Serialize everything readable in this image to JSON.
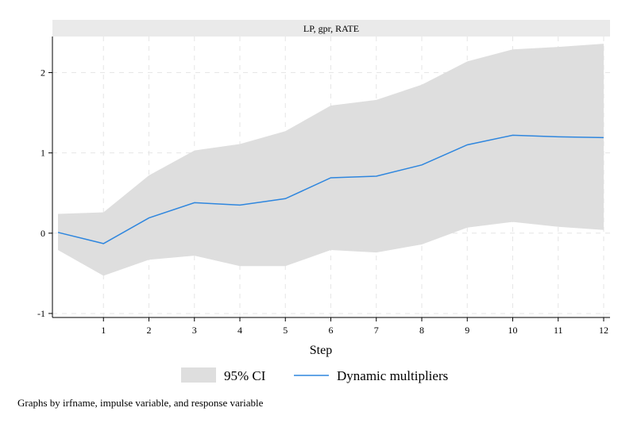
{
  "chart_data": {
    "type": "line",
    "title": "LP, gpr, RATE",
    "xlabel": "Step",
    "ylabel": "",
    "x": [
      0,
      1,
      2,
      3,
      4,
      5,
      6,
      7,
      8,
      9,
      10,
      11,
      12
    ],
    "xticks": [
      1,
      2,
      3,
      4,
      5,
      6,
      7,
      8,
      9,
      10,
      11,
      12
    ],
    "xlim": [
      0,
      12
    ],
    "yticks": [
      -1,
      0,
      1,
      2
    ],
    "ylim": [
      -1.05,
      2.45
    ],
    "grid": true,
    "legend_position": "bottom",
    "series": [
      {
        "name": "95% CI",
        "kind": "band",
        "color": "#dedede",
        "upper": [
          0.24,
          0.26,
          0.72,
          1.03,
          1.11,
          1.27,
          1.59,
          1.66,
          1.85,
          2.14,
          2.29,
          2.32,
          2.36
        ],
        "lower": [
          -0.21,
          -0.53,
          -0.33,
          -0.28,
          -0.41,
          -0.41,
          -0.21,
          -0.24,
          -0.14,
          0.07,
          0.14,
          0.08,
          0.04
        ]
      },
      {
        "name": "Dynamic multipliers",
        "kind": "line",
        "color": "#2e86de",
        "values": [
          0.01,
          -0.13,
          0.19,
          0.38,
          0.35,
          0.43,
          0.69,
          0.71,
          0.85,
          1.1,
          1.22,
          1.2,
          1.19
        ]
      }
    ],
    "note": "Graphs by irfname, impulse variable, and response variable"
  }
}
